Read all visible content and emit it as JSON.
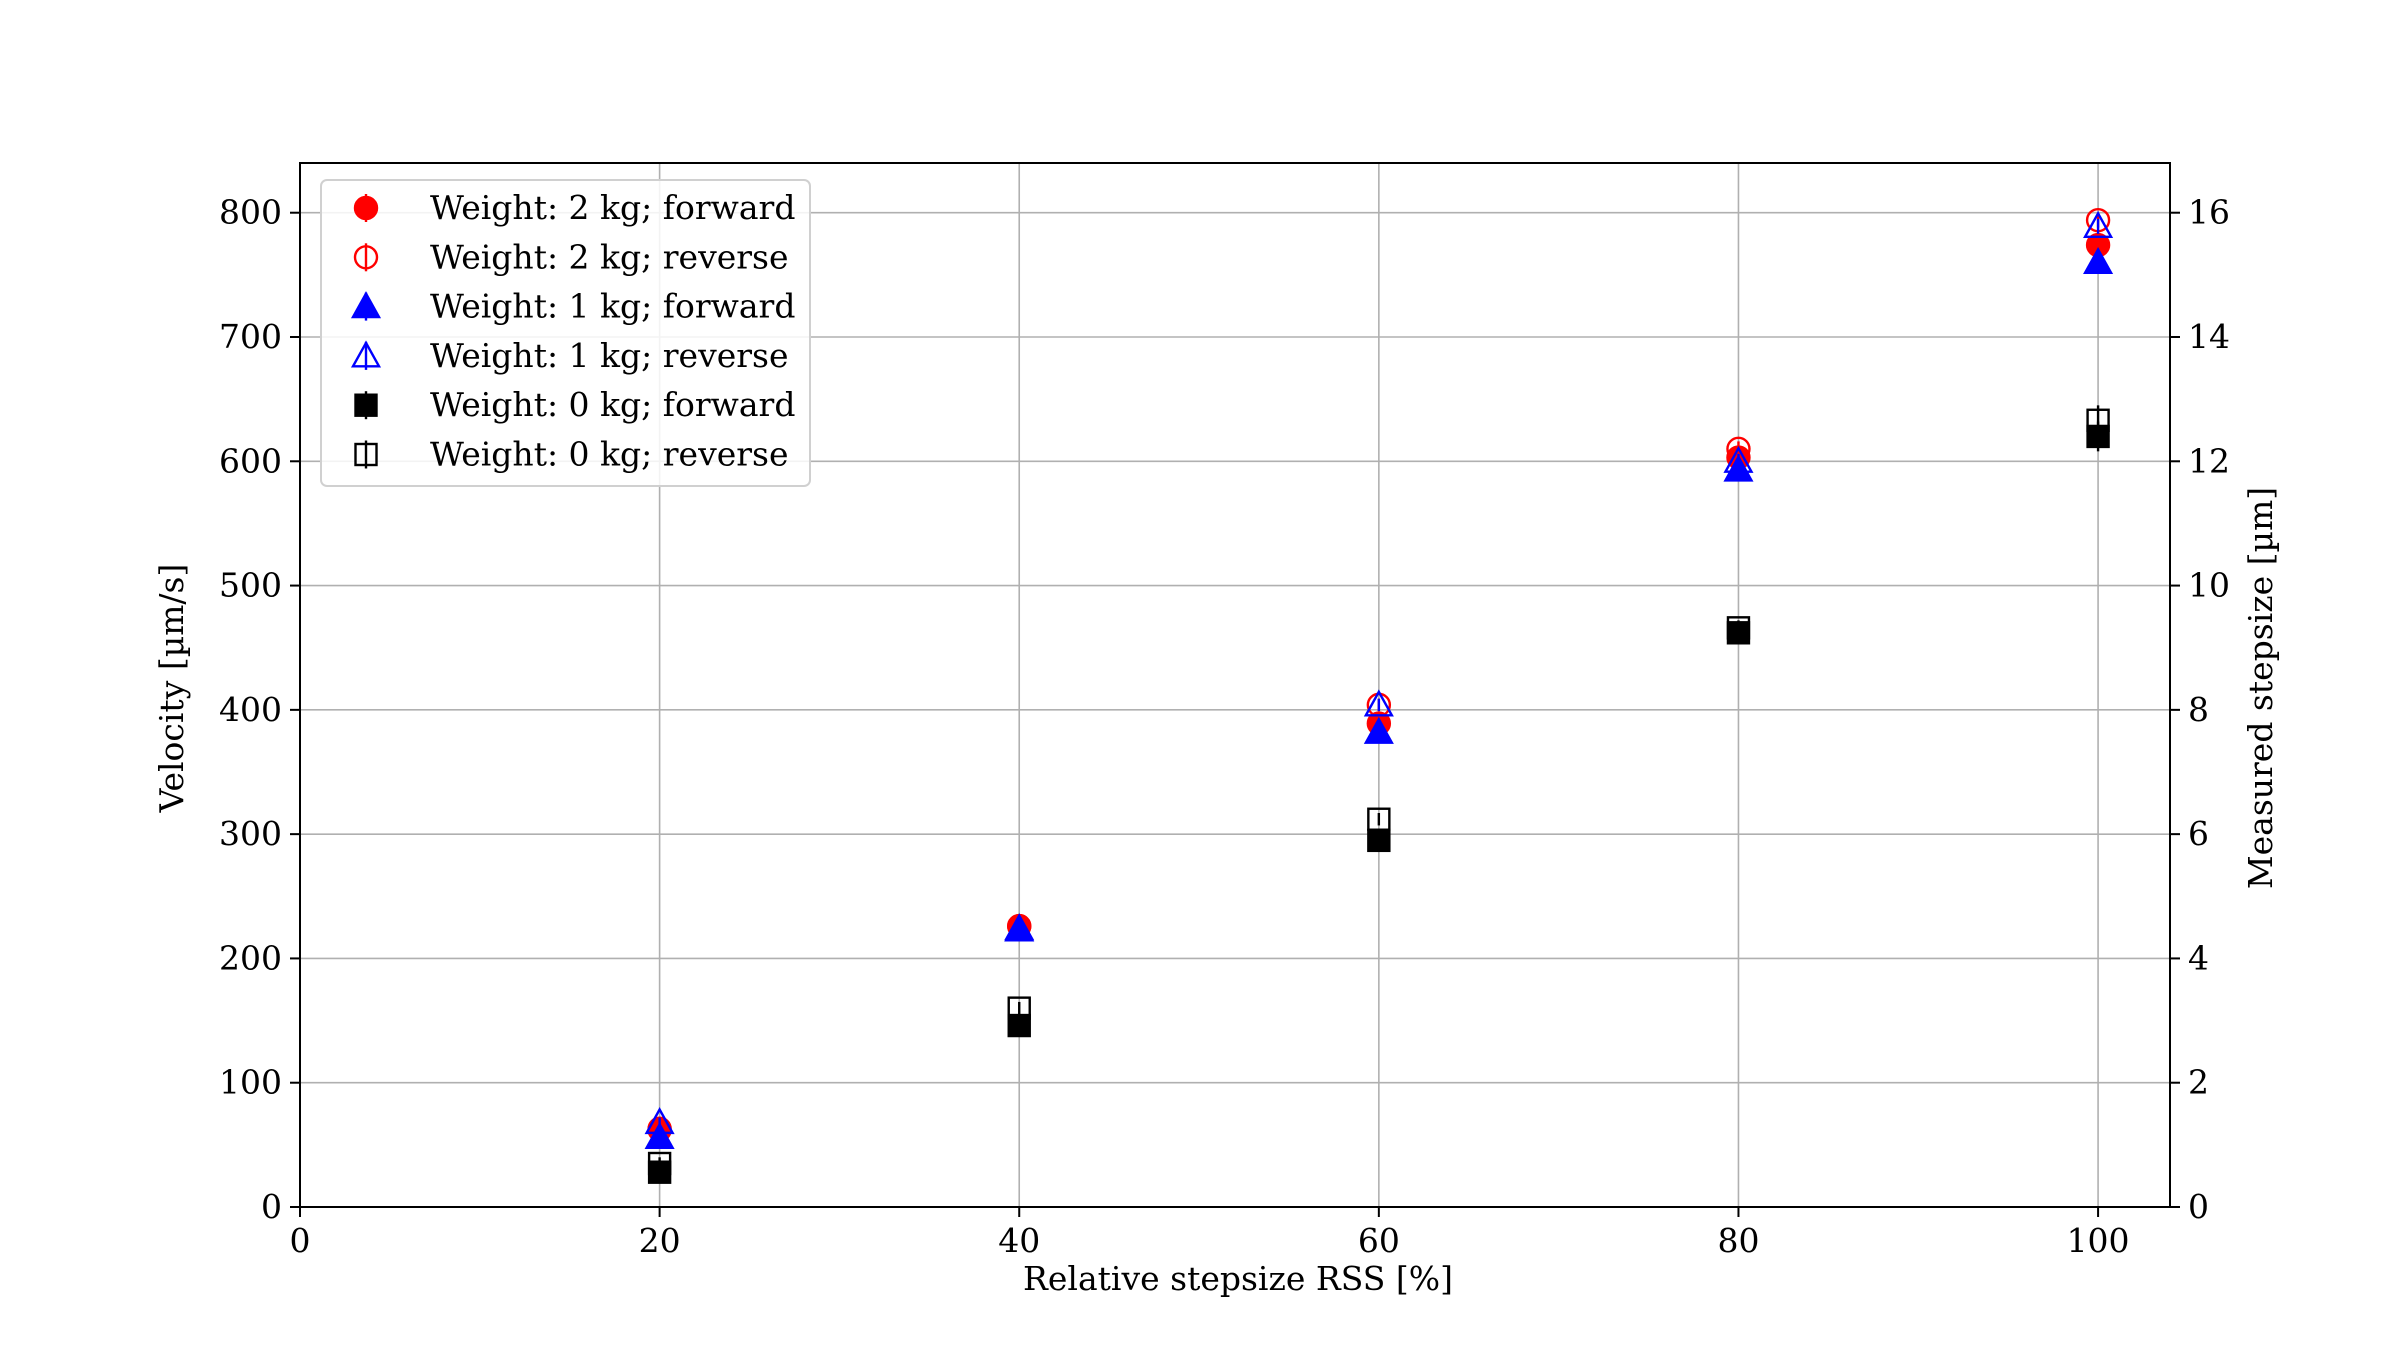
{
  "chart_data": {
    "type": "scatter",
    "title": "",
    "xlabel": "Relative stepsize RSS [%]",
    "ylabel": "Velocity [µm/s]",
    "y2label": "Measured stepsize [µm]",
    "xlim": [
      0,
      104
    ],
    "ylim": [
      0,
      840
    ],
    "y2lim": [
      0,
      16.8
    ],
    "xticks": [
      0,
      20,
      40,
      60,
      80,
      100
    ],
    "yticks": [
      0,
      100,
      200,
      300,
      400,
      500,
      600,
      700,
      800
    ],
    "y2ticks": [
      0,
      2,
      4,
      6,
      8,
      10,
      12,
      14,
      16
    ],
    "grid": true,
    "legend_position": "top-left",
    "x": [
      20,
      40,
      60,
      80,
      100
    ],
    "series": [
      {
        "name": "Weight: 2 kg; forward",
        "marker": "circle",
        "filled": true,
        "color": "#ff0000",
        "values": [
          62,
          226,
          389,
          603,
          774
        ],
        "errors": [
          4,
          4,
          5,
          6,
          6
        ]
      },
      {
        "name": "Weight: 2 kg; reverse",
        "marker": "circle",
        "filled": false,
        "color": "#ff0000",
        "values": [
          63,
          226,
          404,
          610,
          794
        ],
        "errors": [
          4,
          4,
          5,
          6,
          6
        ]
      },
      {
        "name": "Weight: 1 kg; forward",
        "marker": "triangle",
        "filled": true,
        "color": "#0000ff",
        "values": [
          56,
          223,
          382,
          593,
          760
        ],
        "errors": [
          4,
          4,
          5,
          6,
          6
        ]
      },
      {
        "name": "Weight: 1 kg; reverse",
        "marker": "triangle",
        "filled": false,
        "color": "#0000ff",
        "values": [
          68,
          224,
          404,
          600,
          789
        ],
        "errors": [
          4,
          4,
          5,
          6,
          6
        ]
      },
      {
        "name": "Weight: 0 kg; forward",
        "marker": "square",
        "filled": true,
        "color": "#000000",
        "values": [
          28,
          146,
          295,
          462,
          620
        ],
        "errors": [
          5,
          5,
          5,
          6,
          12
        ]
      },
      {
        "name": "Weight: 0 kg; reverse",
        "marker": "square",
        "filled": false,
        "color": "#000000",
        "values": [
          35,
          160,
          312,
          466,
          633
        ],
        "errors": [
          5,
          5,
          5,
          6,
          12
        ]
      }
    ]
  }
}
